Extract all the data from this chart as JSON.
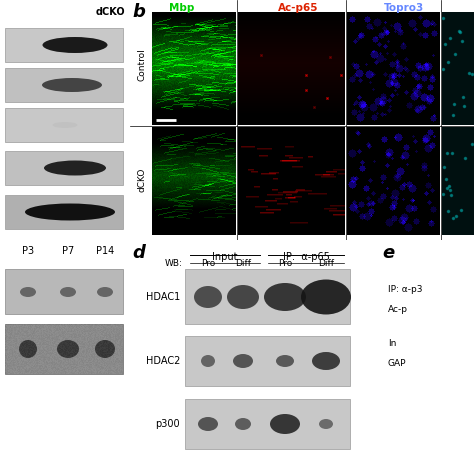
{
  "panel_a_label": "dCKO",
  "panel_b_label": "b",
  "panel_d_label": "d",
  "panel_e_label": "e",
  "mbp_label": "Mbp",
  "acp65_label": "Ac-p65",
  "topro3_label": "Topro3",
  "control_label": "Control",
  "dcko_label": "dCKO",
  "wb_label": "WB:",
  "input_label": "Input",
  "ip_label": "IP:  α-p65",
  "hdac1_label": "HDAC1",
  "hdac2_label": "HDAC2",
  "p300_label": "p300",
  "e_ip_label": "IP: α-p3",
  "e_ac_label": "Ac-p",
  "e_in_label": "In",
  "e_gap_label": "GAP",
  "p3_label": "P3",
  "p7_label": "P7",
  "p14_label": "P14",
  "green_color": "#00dd00",
  "red_color": "#cc2200",
  "blue_color": "#5577ff",
  "mbp_color": "#00cc00",
  "acp65_color": "#dd2200",
  "topro3_color": "#6688ff"
}
